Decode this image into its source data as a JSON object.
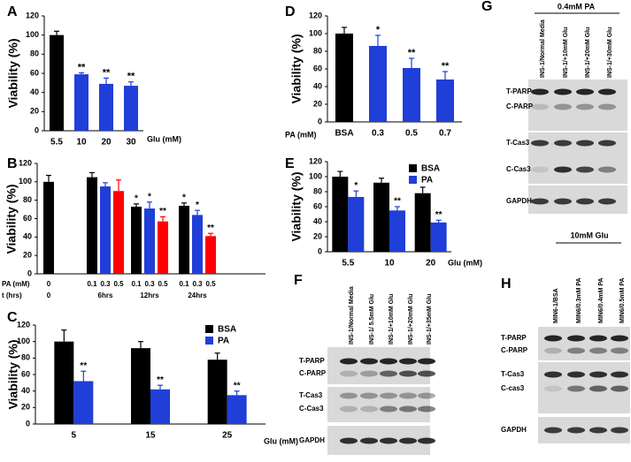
{
  "chart_data": [
    {
      "type": "bar",
      "panel": "A",
      "ylabel": "Viability (%)",
      "xlabel": "Glu (mM)",
      "categories": [
        "5.5",
        "10",
        "20",
        "30"
      ],
      "series": [
        {
          "colors": [
            "#000000",
            "#1f3fd8",
            "#1f3fd8",
            "#1f3fd8"
          ],
          "values": [
            100,
            59,
            49,
            47
          ],
          "errors": [
            4,
            1.5,
            6,
            4
          ],
          "annotations": [
            null,
            "**",
            "**",
            "**"
          ]
        }
      ],
      "ylim": [
        0,
        120
      ],
      "yticks": [
        0,
        20,
        40,
        60,
        80,
        100,
        120
      ]
    },
    {
      "type": "bar",
      "panel": "B",
      "ylabel": "Viability (%)",
      "row_labels": [
        "PA (mM)",
        "t (hrs)"
      ],
      "categories": [
        "0",
        "0.1",
        "0.3",
        "0.5",
        "0.1",
        "0.3",
        "0.5",
        "0.1",
        "0.3",
        "0.5"
      ],
      "time_labels": [
        "0",
        "6hrs",
        "12hrs",
        "24hrs"
      ],
      "series": [
        {
          "colors": [
            "#000000",
            "#000000",
            "#1f3fd8",
            "#ff0000",
            "#000000",
            "#1f3fd8",
            "#ff0000",
            "#000000",
            "#1f3fd8",
            "#ff0000"
          ],
          "values": [
            100,
            105,
            95,
            90,
            73,
            71,
            57,
            74,
            64,
            41
          ],
          "errors": [
            7,
            5,
            4,
            12,
            3,
            7,
            5,
            3,
            5,
            3
          ],
          "annotations": [
            null,
            null,
            null,
            null,
            "*",
            "*",
            "**",
            "*",
            "*",
            "**"
          ]
        }
      ],
      "ylim": [
        0,
        120
      ],
      "yticks": [
        0,
        20,
        40,
        60,
        80,
        100,
        120
      ]
    },
    {
      "type": "bar",
      "panel": "C",
      "ylabel": "Viability (%)",
      "xlabel": "Glu (mM)",
      "categories": [
        "5",
        "15",
        "25"
      ],
      "series": [
        {
          "name": "BSA",
          "color": "#000000",
          "values": [
            100,
            92,
            78
          ],
          "errors": [
            14,
            8,
            8
          ],
          "annotations": [
            null,
            null,
            null
          ]
        },
        {
          "name": "PA",
          "color": "#1f3fd8",
          "values": [
            52,
            42,
            35
          ],
          "errors": [
            12,
            5,
            5
          ],
          "annotations": [
            "**",
            "**",
            "**"
          ]
        }
      ],
      "ylim": [
        0,
        120
      ],
      "yticks": [
        0,
        20,
        40,
        60,
        80,
        100,
        120
      ],
      "legend": "top-right"
    },
    {
      "type": "bar",
      "panel": "D",
      "ylabel": "Viability (%)",
      "xlabel": "PA (mM)",
      "categories": [
        "BSA",
        "0.3",
        "0.5",
        "0.7"
      ],
      "series": [
        {
          "colors": [
            "#000000",
            "#1f3fd8",
            "#1f3fd8",
            "#1f3fd8"
          ],
          "values": [
            100,
            86,
            61,
            48
          ],
          "errors": [
            7,
            12,
            11,
            9
          ],
          "annotations": [
            null,
            "*",
            "**",
            "**"
          ]
        }
      ],
      "ylim": [
        0,
        120
      ],
      "yticks": [
        0,
        20,
        40,
        60,
        80,
        100,
        120
      ]
    },
    {
      "type": "bar",
      "panel": "E",
      "ylabel": "Viability (%)",
      "xlabel": "Glu (mM)",
      "categories": [
        "5.5",
        "10",
        "20"
      ],
      "series": [
        {
          "name": "BSA",
          "color": "#000000",
          "values": [
            100,
            92,
            78
          ],
          "errors": [
            7,
            6,
            8
          ],
          "annotations": [
            null,
            null,
            null
          ]
        },
        {
          "name": "PA",
          "color": "#1f3fd8",
          "values": [
            73,
            55,
            39
          ],
          "errors": [
            8,
            5,
            3
          ],
          "annotations": [
            "*",
            "**",
            "**"
          ]
        }
      ],
      "ylim": [
        0,
        120
      ],
      "yticks": [
        0,
        20,
        40,
        60,
        80,
        100,
        120
      ],
      "legend": "top-right"
    }
  ],
  "blots": [
    {
      "panel": "F",
      "lanes": [
        "INS-1/Normal Media",
        "INS-1/ 5.5mM Glu",
        "INS-1/+10mM Glu",
        "INS-1/+20mM Glu",
        "INS-1/+35mM Glu"
      ],
      "rows": [
        "T-PARP",
        "C-PARP",
        "T-Cas3",
        "C-Cas3",
        "GAPDH"
      ]
    },
    {
      "panel": "G",
      "header": "0.4mM PA",
      "lanes": [
        "INS-1/Normal Media",
        "INS-1/+10mM Glu",
        "INS-1/+20mM Glu",
        "INS-1/+30mM Glu"
      ],
      "rows": [
        "T-PARP",
        "C-PARP",
        "T-Cas3",
        "C-Cas3",
        "GAPDH"
      ]
    },
    {
      "panel": "H",
      "header": "10mM Glu",
      "lanes": [
        "MIN6-1/BSA",
        "MIN6/0.3mM PA",
        "MIN6/0.4mM PA",
        "MIN6/0.5mM PA"
      ],
      "rows": [
        "T-PARP",
        "C-PARP",
        "T-Cas3",
        "C-cas3",
        "GAPDH"
      ]
    }
  ]
}
